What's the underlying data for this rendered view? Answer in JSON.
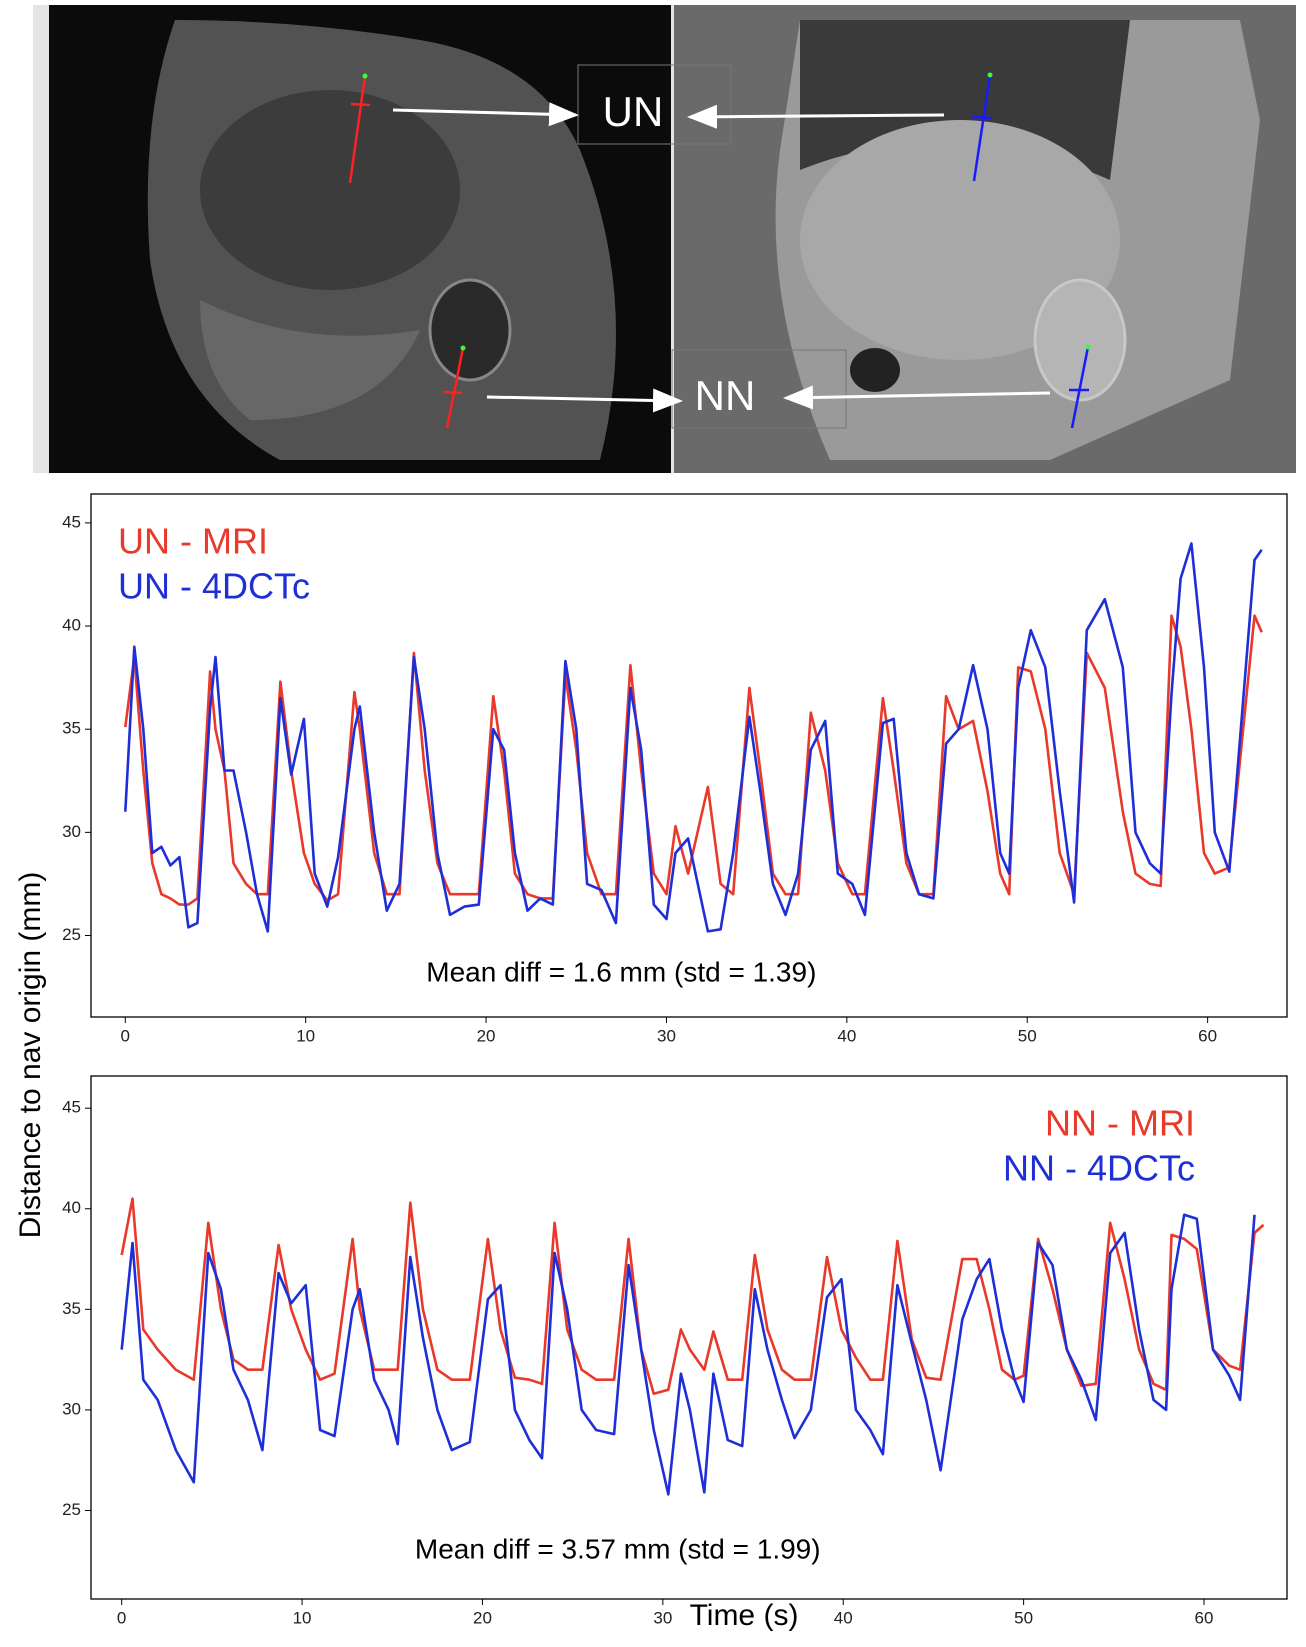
{
  "images": {
    "labels": [
      "UN",
      "NN"
    ]
  },
  "chart_data": [
    {
      "type": "line",
      "legend": "upper left",
      "ylabel": "Distance to nav origin (mm)",
      "annotation": "Mean diff = 1.6 mm (std = 1.39)",
      "xlim": [
        -1.9,
        64.4
      ],
      "ylim": [
        21.05,
        46.4
      ],
      "xticks": [
        0,
        10,
        20,
        30,
        40,
        50,
        60
      ],
      "yticks": [
        25,
        30,
        35,
        40,
        45
      ],
      "x": [
        0,
        0.5,
        1,
        1.5,
        2,
        2.5,
        3,
        3.5,
        4,
        4.7,
        5,
        5.5,
        6,
        6.7,
        7.3,
        7.9,
        8.6,
        9.2,
        9.9,
        10.5,
        11.2,
        11.8,
        12.7,
        13,
        13.8,
        14.5,
        15.2,
        16,
        16.6,
        17.3,
        18,
        18.8,
        19.6,
        20.4,
        21,
        21.6,
        22.3,
        23,
        23.7,
        24.4,
        25,
        25.6,
        26.4,
        27.2,
        28,
        28.6,
        29.3,
        30,
        30.5,
        31.2,
        32.3,
        33,
        33.7,
        34.6,
        35.2,
        35.9,
        36.6,
        37.3,
        38,
        38.8,
        39.5,
        40.3,
        41,
        42,
        42.6,
        43.3,
        44,
        44.8,
        45.5,
        46.2,
        47,
        47.8,
        48.5,
        49,
        49.5,
        50.2,
        51,
        51.8,
        52.6,
        53.3,
        54.3,
        55.3,
        56,
        56.8,
        57.4,
        58,
        58.5,
        59.1,
        59.8,
        60.4,
        61.2,
        62.6,
        63
      ],
      "series": [
        {
          "name": "UN - MRI",
          "color": "#e8392a",
          "values": [
            35.1,
            38.5,
            33,
            28.5,
            27,
            26.8,
            26.5,
            26.5,
            26.8,
            37.8,
            35,
            33,
            28.5,
            27.5,
            27,
            27,
            37.3,
            33,
            29,
            27.5,
            26.7,
            27,
            36.8,
            35,
            29,
            27,
            27,
            38.7,
            33,
            28.5,
            27,
            27,
            27,
            36.6,
            33,
            28,
            27,
            26.8,
            26.8,
            37.6,
            34,
            29,
            27,
            27,
            38.1,
            33,
            28,
            27,
            30.3,
            28,
            32.2,
            27.5,
            27,
            37,
            33,
            28,
            27,
            27,
            35.8,
            33,
            28.5,
            27,
            27,
            36.5,
            33,
            28.5,
            27,
            27,
            36.6,
            35,
            35.4,
            32,
            28,
            27,
            38,
            37.8,
            35,
            29,
            27,
            38.7,
            37,
            31,
            28,
            27.5,
            27.4,
            40.5,
            39,
            35,
            29,
            28,
            28.3,
            40.5,
            39.7
          ]
        },
        {
          "name": "UN - 4DCTc",
          "color": "#1f2fd8",
          "values": [
            31,
            39,
            35,
            29,
            29.3,
            28.4,
            28.8,
            25.4,
            25.6,
            36,
            38.5,
            33,
            33,
            30,
            27,
            25.2,
            36.5,
            32.8,
            35.5,
            28,
            26.4,
            28.8,
            35,
            36.1,
            30,
            26.2,
            27.5,
            38.5,
            35,
            29,
            26,
            26.4,
            26.5,
            35,
            34,
            29,
            26.2,
            26.8,
            26.5,
            38.3,
            35,
            27.5,
            27.2,
            25.6,
            37,
            34,
            26.5,
            25.8,
            29,
            29.7,
            25.2,
            25.3,
            29,
            35.6,
            32,
            27.5,
            26,
            28,
            34,
            35.4,
            28,
            27.5,
            26,
            35.3,
            35.5,
            29,
            27,
            26.8,
            34.3,
            35,
            38.1,
            35,
            29,
            28,
            37,
            39.8,
            38,
            32,
            26.6,
            39.8,
            41.3,
            38,
            30,
            28.5,
            28,
            36.7,
            42.3,
            44,
            38,
            30,
            28.1,
            43.2,
            43.7
          ]
        }
      ]
    },
    {
      "type": "line",
      "legend": "upper right",
      "xlabel": "Time (s)",
      "annotation": "Mean diff = 3.57 mm (std = 1.99)",
      "xlim": [
        -1.7,
        64.6
      ],
      "ylim": [
        20.6,
        46.6
      ],
      "xticks": [
        0,
        10,
        20,
        30,
        40,
        50,
        60
      ],
      "yticks": [
        25,
        30,
        35,
        40,
        45
      ],
      "x": [
        0,
        0.6,
        1.2,
        2,
        3,
        4,
        4.8,
        5.5,
        6.2,
        7,
        7.8,
        8.7,
        9.4,
        10.2,
        11,
        11.8,
        12.8,
        13.2,
        14,
        14.8,
        15.3,
        16,
        16.7,
        17.5,
        18.3,
        19.3,
        20.3,
        21,
        21.8,
        22.6,
        23.3,
        24,
        24.7,
        25.5,
        26.3,
        27.3,
        28.1,
        28.8,
        29.5,
        30.3,
        31,
        31.5,
        32.3,
        32.8,
        33.6,
        34.4,
        35.1,
        35.8,
        36.6,
        37.3,
        38.2,
        39.1,
        39.9,
        40.7,
        41.5,
        42.2,
        43,
        43.8,
        44.6,
        45.4,
        46.6,
        47.4,
        48.1,
        48.8,
        49.5,
        50,
        50.8,
        51.6,
        52.4,
        53.2,
        54,
        54.8,
        55.6,
        56.4,
        57.2,
        57.9,
        58.2,
        58.9,
        59.6,
        60.5,
        61.4,
        62,
        62.8,
        63.3
      ],
      "series": [
        {
          "name": "NN - MRI",
          "color": "#e8392a",
          "values": [
            37.7,
            40.5,
            34,
            33,
            32,
            31.5,
            39.3,
            35,
            32.5,
            32,
            32,
            38.2,
            35,
            33,
            31.5,
            31.8,
            38.5,
            35,
            32,
            32,
            32,
            40.3,
            35,
            32,
            31.5,
            31.5,
            38.5,
            34,
            31.6,
            31.5,
            31.3,
            39.3,
            34,
            32,
            31.5,
            31.5,
            38.5,
            33,
            30.8,
            31,
            34,
            33,
            32,
            33.9,
            31.5,
            31.5,
            37.7,
            34,
            32,
            31.5,
            31.5,
            37.6,
            34,
            32.6,
            31.5,
            31.5,
            38.4,
            33.5,
            31.6,
            31.5,
            37.5,
            37.5,
            35,
            32,
            31.5,
            31.7,
            38.5,
            36,
            33,
            31.2,
            31.3,
            39.3,
            36.5,
            33,
            31.3,
            31,
            38.7,
            38.5,
            38,
            33,
            32.2,
            32,
            38.8,
            39.2
          ]
        },
        {
          "name": "NN - 4DCTc",
          "color": "#1f2fd8",
          "values": [
            33,
            38.3,
            31.5,
            30.5,
            28,
            26.4,
            37.8,
            36,
            32,
            30.5,
            28,
            36.8,
            35.3,
            36.2,
            29,
            28.7,
            35,
            36,
            31.5,
            30,
            28.3,
            37.6,
            33.6,
            30,
            28,
            28.4,
            35.5,
            36.2,
            30,
            28.5,
            27.6,
            37.8,
            35,
            30,
            29,
            28.8,
            37.2,
            33,
            29,
            25.8,
            31.8,
            30,
            25.9,
            31.8,
            28.5,
            28.2,
            36,
            33,
            30.5,
            28.6,
            30,
            35.6,
            36.5,
            30,
            29,
            27.8,
            36.2,
            33.3,
            30.5,
            27,
            34.5,
            36.5,
            37.5,
            34,
            31.5,
            30.4,
            38.3,
            37.2,
            33,
            31.5,
            29.5,
            37.8,
            38.8,
            34,
            30.5,
            30,
            36,
            39.7,
            39.5,
            33,
            31.7,
            30.5,
            39.7,
            null
          ]
        }
      ]
    }
  ]
}
